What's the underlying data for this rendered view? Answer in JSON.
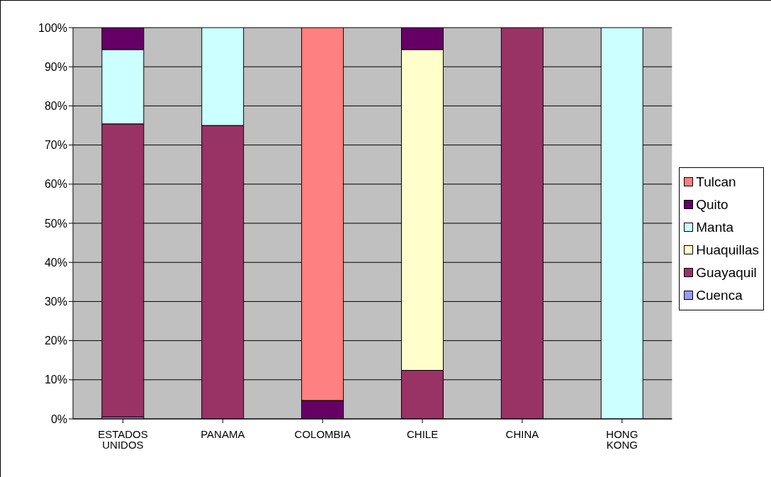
{
  "chart_data": {
    "type": "bar",
    "stacked": true,
    "categories": [
      "ESTADOS UNIDOS",
      "PANAMA",
      "COLOMBIA",
      "CHILE",
      "CHINA",
      "HONG KONG"
    ],
    "series": [
      {
        "name": "Cuenca",
        "color": "#9999ff",
        "values": [
          0.5,
          0,
          0,
          0,
          0,
          0
        ]
      },
      {
        "name": "Guayaquil",
        "color": "#993366",
        "values": [
          74.9,
          75,
          0,
          12.4,
          100,
          0
        ]
      },
      {
        "name": "Huaquillas",
        "color": "#ffffcc",
        "values": [
          0,
          0,
          0,
          82,
          0,
          0
        ]
      },
      {
        "name": "Manta",
        "color": "#ccffff",
        "values": [
          19,
          25,
          0,
          0,
          0,
          100
        ]
      },
      {
        "name": "Quito",
        "color": "#660066",
        "values": [
          5.6,
          0,
          4.7,
          5.6,
          0,
          0
        ]
      },
      {
        "name": "Tulcan",
        "color": "#ff8080",
        "values": [
          0,
          0,
          95.3,
          0,
          0,
          0
        ]
      }
    ],
    "ylim": [
      0,
      100
    ],
    "yticks": [
      {
        "value": 0,
        "label": "0%"
      },
      {
        "value": 10,
        "label": "10%"
      },
      {
        "value": 20,
        "label": "20%"
      },
      {
        "value": 30,
        "label": "30%"
      },
      {
        "value": 40,
        "label": "40%"
      },
      {
        "value": 50,
        "label": "50%"
      },
      {
        "value": 60,
        "label": "60%"
      },
      {
        "value": 70,
        "label": "70%"
      },
      {
        "value": 80,
        "label": "80%"
      },
      {
        "value": 90,
        "label": "90%"
      },
      {
        "value": 100,
        "label": "100%"
      }
    ],
    "grid": "y",
    "legend": "right"
  }
}
